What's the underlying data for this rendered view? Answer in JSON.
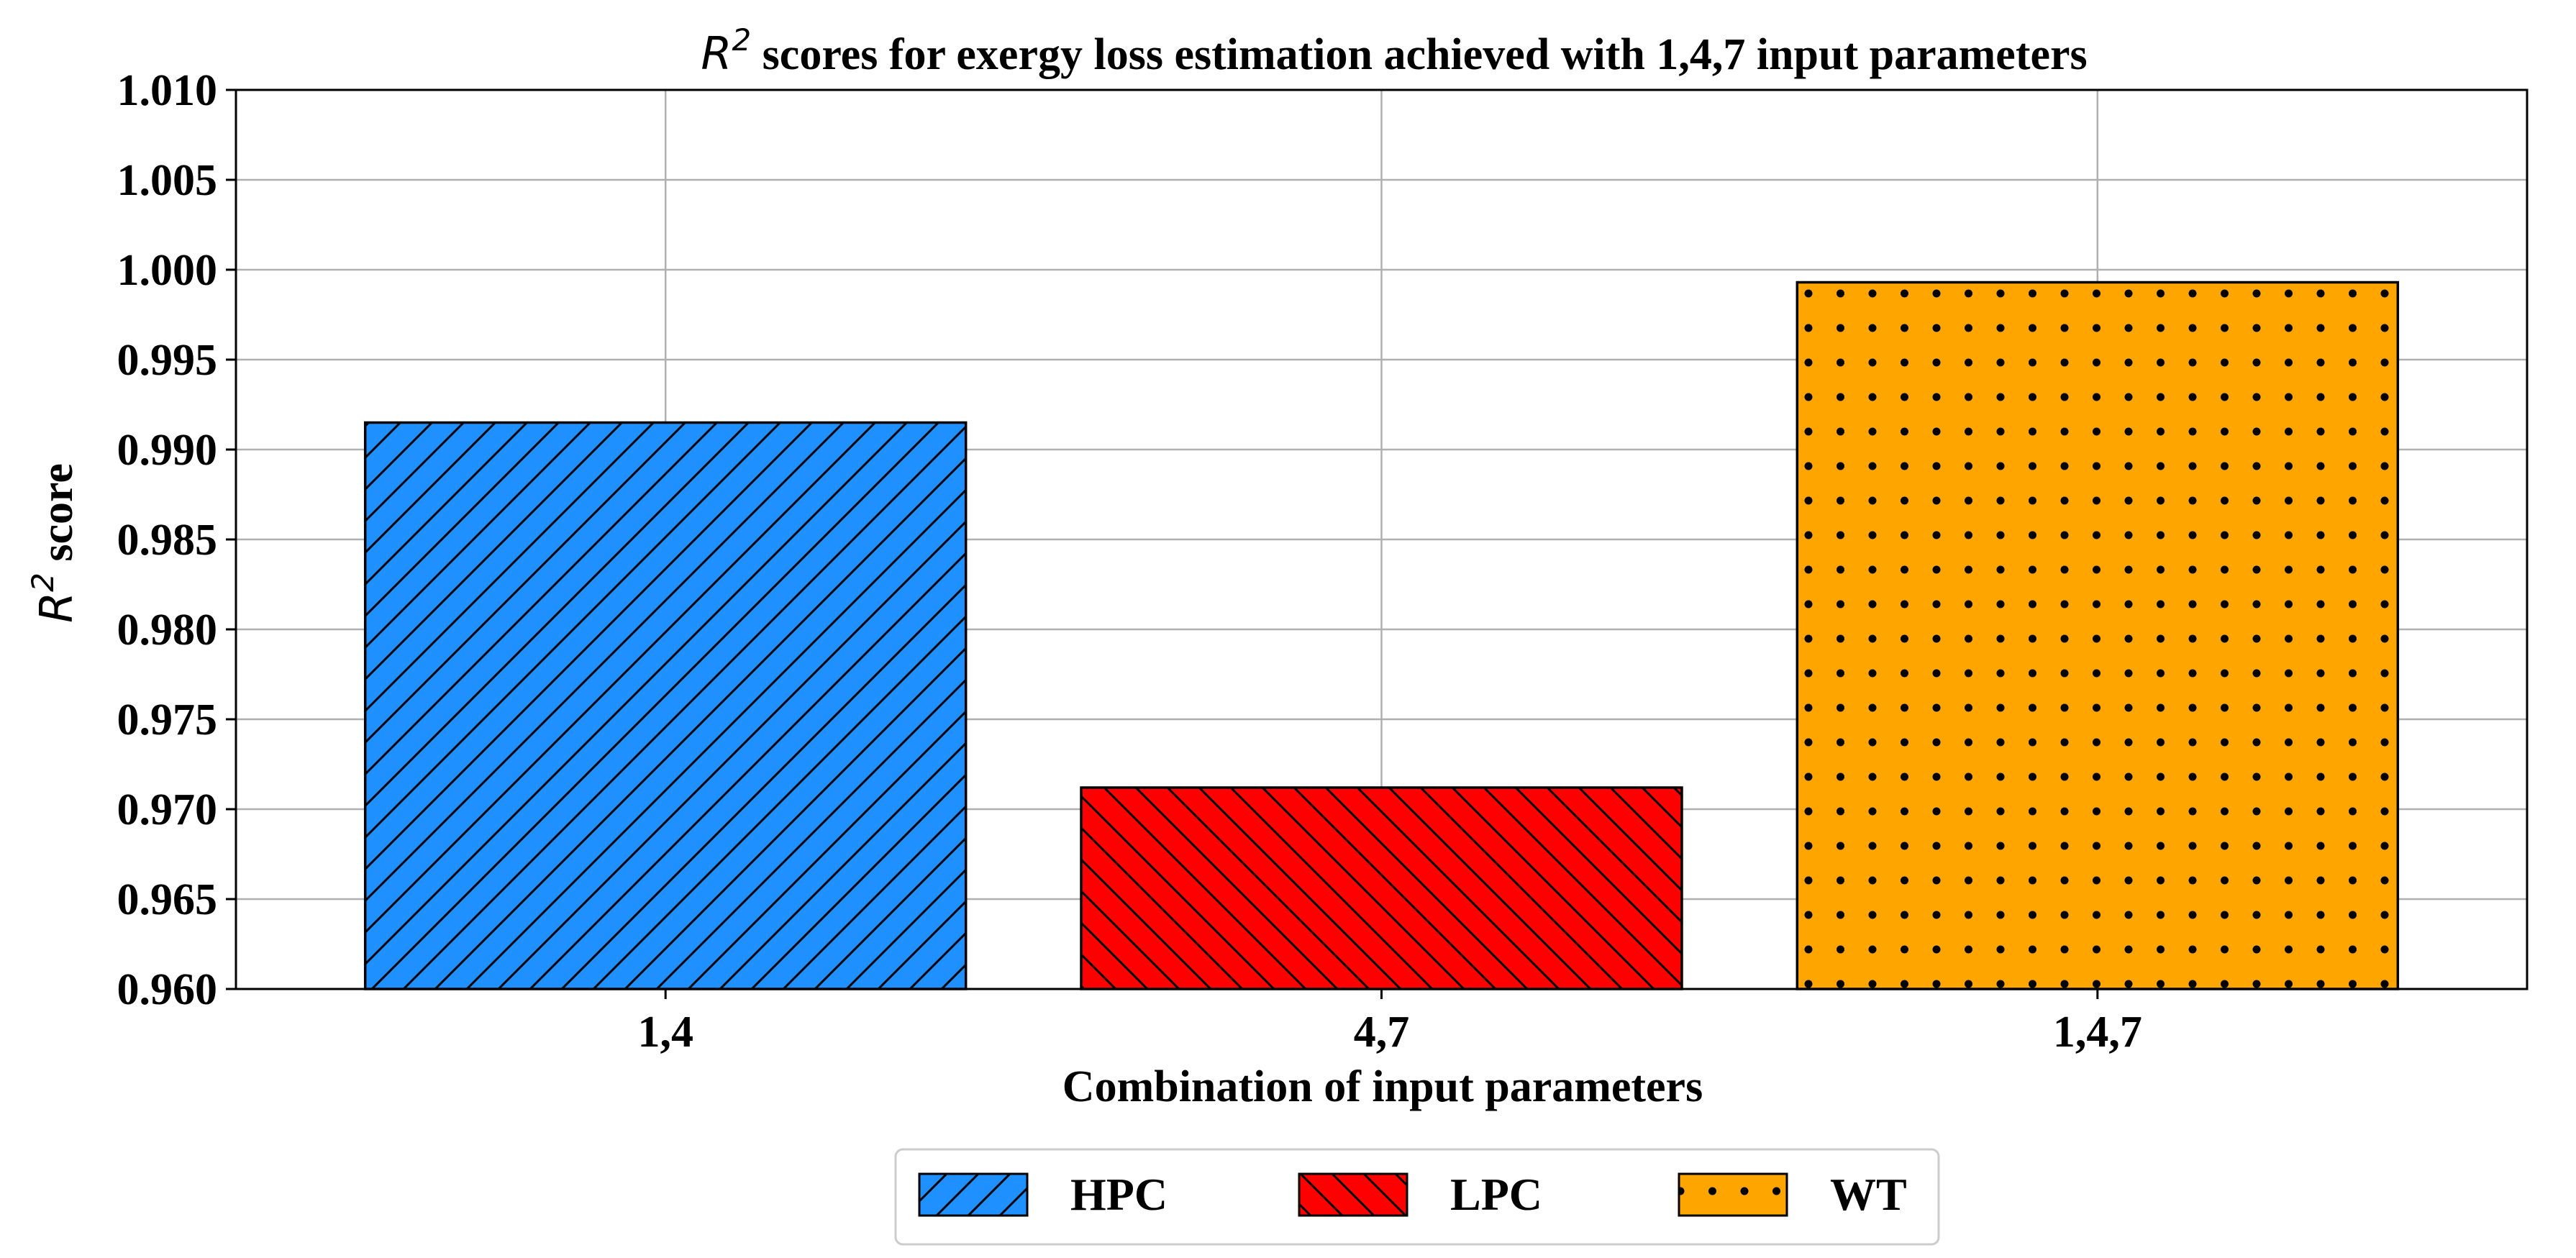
{
  "chart_data": {
    "type": "bar",
    "title": "R² scores for exergy loss estimation achieved with 1,4,7 input parameters",
    "title_parts": {
      "symbol": "R",
      "sup": "2",
      "rest": " scores for exergy loss estimation achieved with 1,4,7 input parameters"
    },
    "xlabel": "Combination of input parameters",
    "ylabel": "R² score",
    "ylabel_parts": {
      "symbol": "R",
      "sup": "2",
      "rest": " score"
    },
    "categories": [
      "1,4",
      "4,7",
      "1,4,7"
    ],
    "values": [
      0.9915,
      0.9712,
      0.9993
    ],
    "series_names": [
      "HPC",
      "LPC",
      "WT"
    ],
    "ylim": [
      0.96,
      1.01
    ],
    "yticks": [
      "0.960",
      "0.965",
      "0.970",
      "0.975",
      "0.980",
      "0.985",
      "0.990",
      "0.995",
      "1.000",
      "1.005",
      "1.010"
    ],
    "grid": true,
    "legend_position": "bottom-center",
    "colors": [
      "#1E90FF",
      "#FF0000",
      "#FFA500"
    ],
    "hatches": [
      "/",
      "\\",
      "."
    ]
  }
}
